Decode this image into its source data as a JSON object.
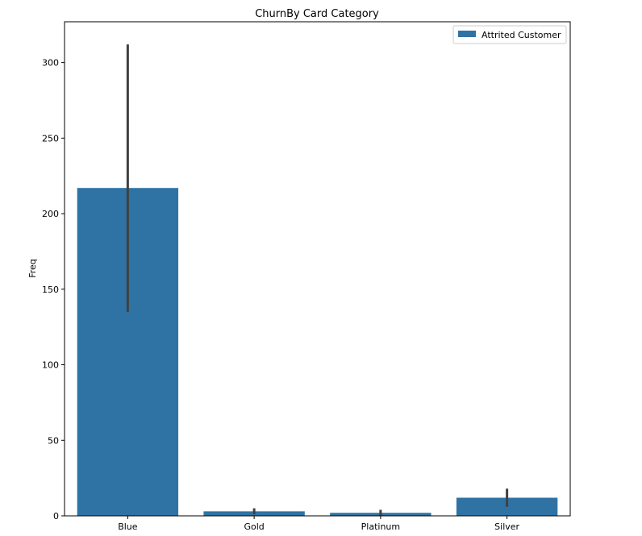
{
  "chart_data": {
    "type": "bar",
    "title": "ChurnBy Card Category",
    "xlabel": "",
    "ylabel": "Freq",
    "categories": [
      "Blue",
      "Gold",
      "Platinum",
      "Silver"
    ],
    "series": [
      {
        "name": "Attrited Customer",
        "color": "#2f73a5",
        "values": [
          217,
          3,
          2,
          12
        ],
        "error_low": [
          135,
          1,
          0,
          6
        ],
        "error_high": [
          312,
          5,
          4,
          18
        ]
      }
    ],
    "ylim": [
      0,
      327
    ],
    "yticks": [
      0,
      50,
      100,
      150,
      200,
      250,
      300
    ],
    "grid": false,
    "legend_position": "top-right",
    "errorbar_color": "#404040"
  }
}
